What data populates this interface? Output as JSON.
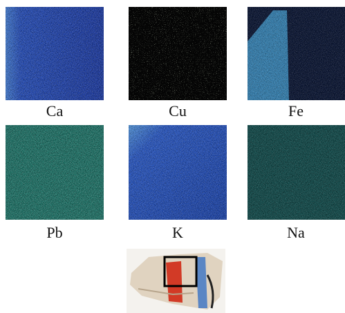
{
  "panels": [
    {
      "label": "Ca"
    },
    {
      "label": "Cu"
    },
    {
      "label": "Fe"
    },
    {
      "label": "Pb"
    },
    {
      "label": "K"
    },
    {
      "label": "Na"
    }
  ]
}
